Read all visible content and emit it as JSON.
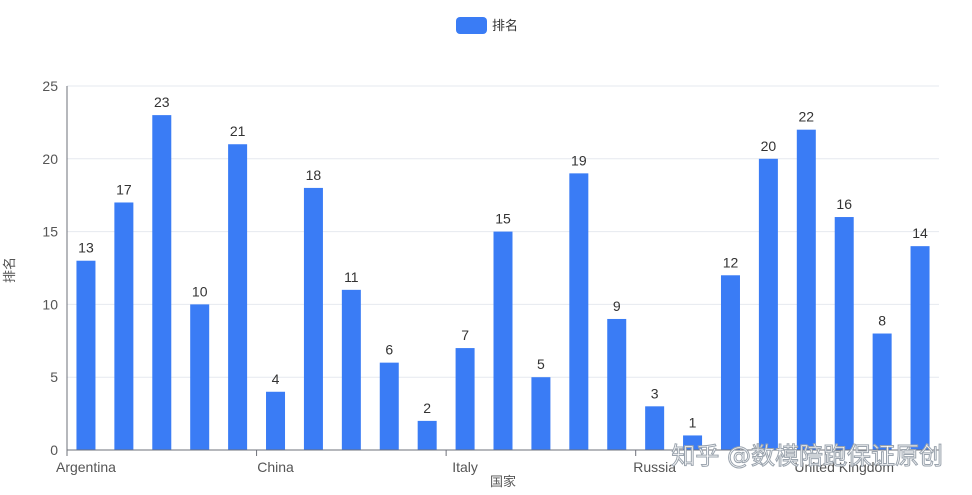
{
  "chart_data": {
    "type": "bar",
    "legend": {
      "label": "排名",
      "position": "top-center"
    },
    "xlabel": "国家",
    "ylabel": "排名",
    "ylim": [
      0,
      25
    ],
    "yticks": [
      0,
      5,
      10,
      15,
      20,
      25
    ],
    "grid": true,
    "xtick_labels": [
      "Argentina",
      "China",
      "Italy",
      "Russia",
      "United Kingdom"
    ],
    "series": [
      {
        "name": "排名",
        "color": "#3a7cf5",
        "values": [
          13,
          17,
          23,
          10,
          21,
          4,
          18,
          11,
          6,
          2,
          7,
          15,
          5,
          19,
          9,
          3,
          1,
          12,
          20,
          22,
          16,
          8,
          14
        ]
      }
    ]
  },
  "watermark": "知乎 @数模陪跑保证原创"
}
